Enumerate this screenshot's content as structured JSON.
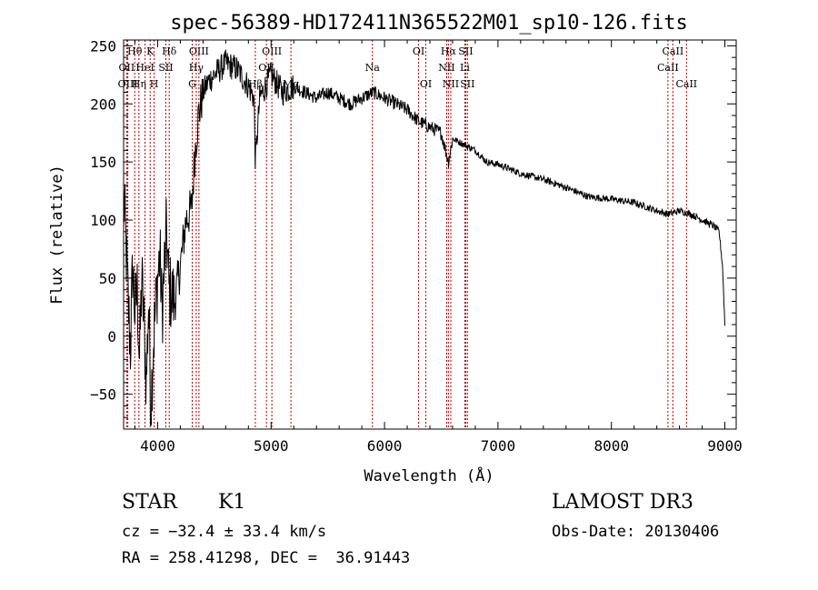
{
  "chart_data": {
    "type": "line",
    "title": "spec-56389-HD172411N365522M01_sp10-126.fits",
    "xlabel": "Wavelength (Å)",
    "ylabel": "Flux (relative)",
    "xlim": [
      3700,
      9100
    ],
    "ylim": [
      -80,
      255
    ],
    "xticks": [
      4000,
      5000,
      6000,
      7000,
      8000,
      9000
    ],
    "yticks": [
      -50,
      0,
      50,
      100,
      150,
      200,
      250
    ],
    "grid": false,
    "line_color": "#000000",
    "marker_color": "#b00000",
    "spectrum_anchors": {
      "x": [
        3700,
        3720,
        3740,
        3760,
        3780,
        3800,
        3820,
        3840,
        3860,
        3880,
        3900,
        3920,
        3940,
        3960,
        3980,
        4000,
        4020,
        4040,
        4060,
        4080,
        4100,
        4150,
        4200,
        4250,
        4300,
        4330,
        4360,
        4400,
        4450,
        4500,
        4600,
        4700,
        4800,
        4850,
        4861,
        4900,
        5000,
        5100,
        5200,
        5300,
        5400,
        5500,
        5600,
        5700,
        5800,
        5900,
        6000,
        6100,
        6200,
        6300,
        6400,
        6500,
        6563,
        6600,
        6700,
        6800,
        6900,
        7000,
        7200,
        7400,
        7600,
        7800,
        8000,
        8200,
        8400,
        8500,
        8600,
        8700,
        8800,
        8900,
        8950,
        8980,
        9000
      ],
      "y": [
        120,
        80,
        30,
        -10,
        60,
        20,
        40,
        -20,
        50,
        10,
        -40,
        30,
        -60,
        -10,
        20,
        50,
        70,
        20,
        60,
        90,
        40,
        30,
        60,
        100,
        110,
        160,
        190,
        210,
        220,
        225,
        235,
        230,
        215,
        205,
        150,
        205,
        225,
        210,
        215,
        210,
        205,
        210,
        205,
        200,
        205,
        210,
        205,
        200,
        195,
        185,
        180,
        175,
        150,
        170,
        165,
        160,
        150,
        148,
        140,
        135,
        128,
        120,
        118,
        115,
        108,
        105,
        108,
        105,
        100,
        95,
        90,
        60,
        10
      ]
    },
    "lines": [
      {
        "label": "Hθ",
        "x": 3798,
        "row": 0
      },
      {
        "label": "OII",
        "x": 3727,
        "row": 1
      },
      {
        "label": "OIII",
        "x": 3737,
        "row": 2
      },
      {
        "label": "K",
        "x": 3934,
        "row": 0
      },
      {
        "label": "HeI",
        "x": 3889,
        "row": 1
      },
      {
        "label": "Hη",
        "x": 3835,
        "row": 2
      },
      {
        "label": "H",
        "x": 3969,
        "row": 2
      },
      {
        "label": "SII",
        "x": 4072,
        "row": 1
      },
      {
        "label": "Hδ",
        "x": 4102,
        "row": 0
      },
      {
        "label": "OIII",
        "x": 4364,
        "row": 0
      },
      {
        "label": "Hγ",
        "x": 4340,
        "row": 1
      },
      {
        "label": "G",
        "x": 4305,
        "row": 2
      },
      {
        "label": "OIII",
        "x": 5007,
        "row": 0
      },
      {
        "label": "OII",
        "x": 4959,
        "row": 1
      },
      {
        "label": "Hβ",
        "x": 4861,
        "row": 2
      },
      {
        "label": "Mg",
        "x": 5175,
        "row": 2
      },
      {
        "label": "Na",
        "x": 5893,
        "row": 1
      },
      {
        "label": "OI",
        "x": 6300,
        "row": 0
      },
      {
        "label": "OI",
        "x": 6364,
        "row": 2
      },
      {
        "label": "Hα",
        "x": 6563,
        "row": 0
      },
      {
        "label": "SII",
        "x": 6716,
        "row": 0
      },
      {
        "label": "NII",
        "x": 6548,
        "row": 1
      },
      {
        "label": "Li",
        "x": 6708,
        "row": 1
      },
      {
        "label": "NII",
        "x": 6584,
        "row": 2
      },
      {
        "label": "SII",
        "x": 6731,
        "row": 2
      },
      {
        "label": "CaII",
        "x": 8542,
        "row": 0
      },
      {
        "label": "CaII",
        "x": 8498,
        "row": 1
      },
      {
        "label": "CaII",
        "x": 8662,
        "row": 2
      }
    ]
  },
  "info": {
    "class": "STAR",
    "subclass": "K1",
    "survey": "LAMOST DR3",
    "cz": "cz = −32.4 ± 33.4 km/s",
    "obs_date": "Obs-Date: 20130406",
    "coords": "RA = 258.41298, DEC =  36.91443"
  }
}
